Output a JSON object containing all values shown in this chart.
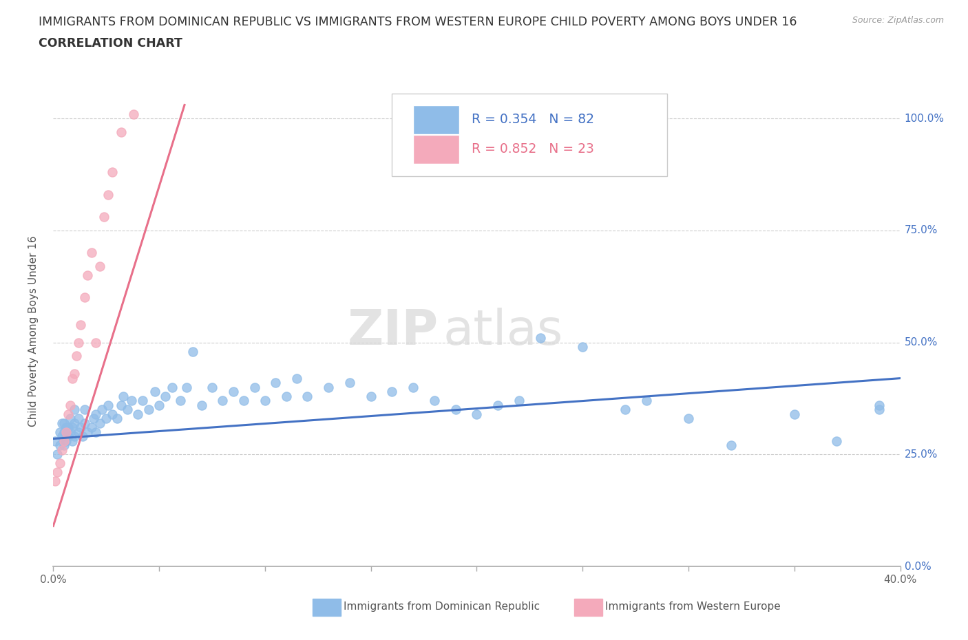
{
  "title_line1": "IMMIGRANTS FROM DOMINICAN REPUBLIC VS IMMIGRANTS FROM WESTERN EUROPE CHILD POVERTY AMONG BOYS UNDER 16",
  "title_line2": "CORRELATION CHART",
  "source": "Source: ZipAtlas.com",
  "ylabel": "Child Poverty Among Boys Under 16",
  "xlim": [
    0.0,
    0.4
  ],
  "ylim": [
    0.0,
    1.05
  ],
  "xticks": [
    0.0,
    0.05,
    0.1,
    0.15,
    0.2,
    0.25,
    0.3,
    0.35,
    0.4
  ],
  "yticks": [
    0.0,
    0.25,
    0.5,
    0.75,
    1.0
  ],
  "xtick_labels": [
    "0.0%",
    "",
    "",
    "",
    "",
    "",
    "",
    "",
    "40.0%"
  ],
  "blue_color": "#8FBCE8",
  "pink_color": "#F4AABB",
  "blue_line_color": "#4472C4",
  "pink_line_color": "#E8708A",
  "legend_R1": "R = 0.354",
  "legend_N1": "N = 82",
  "legend_R2": "R = 0.852",
  "legend_N2": "N = 23",
  "watermark_zip": "ZIP",
  "watermark_atlas": "atlas",
  "blue_scatter_x": [
    0.001,
    0.002,
    0.003,
    0.003,
    0.004,
    0.004,
    0.005,
    0.005,
    0.005,
    0.006,
    0.006,
    0.007,
    0.007,
    0.008,
    0.008,
    0.009,
    0.009,
    0.01,
    0.01,
    0.01,
    0.012,
    0.012,
    0.013,
    0.014,
    0.015,
    0.015,
    0.016,
    0.018,
    0.019,
    0.02,
    0.02,
    0.022,
    0.023,
    0.025,
    0.026,
    0.028,
    0.03,
    0.032,
    0.033,
    0.035,
    0.037,
    0.04,
    0.042,
    0.045,
    0.048,
    0.05,
    0.053,
    0.056,
    0.06,
    0.063,
    0.066,
    0.07,
    0.075,
    0.08,
    0.085,
    0.09,
    0.095,
    0.1,
    0.105,
    0.11,
    0.115,
    0.12,
    0.13,
    0.14,
    0.15,
    0.16,
    0.17,
    0.18,
    0.19,
    0.2,
    0.21,
    0.22,
    0.23,
    0.25,
    0.27,
    0.28,
    0.3,
    0.32,
    0.35,
    0.37,
    0.39,
    0.39
  ],
  "blue_scatter_y": [
    0.28,
    0.25,
    0.27,
    0.3,
    0.29,
    0.32,
    0.27,
    0.3,
    0.32,
    0.28,
    0.31,
    0.29,
    0.31,
    0.3,
    0.33,
    0.28,
    0.31,
    0.29,
    0.32,
    0.35,
    0.3,
    0.33,
    0.31,
    0.29,
    0.32,
    0.35,
    0.3,
    0.31,
    0.33,
    0.3,
    0.34,
    0.32,
    0.35,
    0.33,
    0.36,
    0.34,
    0.33,
    0.36,
    0.38,
    0.35,
    0.37,
    0.34,
    0.37,
    0.35,
    0.39,
    0.36,
    0.38,
    0.4,
    0.37,
    0.4,
    0.48,
    0.36,
    0.4,
    0.37,
    0.39,
    0.37,
    0.4,
    0.37,
    0.41,
    0.38,
    0.42,
    0.38,
    0.4,
    0.41,
    0.38,
    0.39,
    0.4,
    0.37,
    0.35,
    0.34,
    0.36,
    0.37,
    0.51,
    0.49,
    0.35,
    0.37,
    0.33,
    0.27,
    0.34,
    0.28,
    0.35,
    0.36
  ],
  "pink_scatter_x": [
    0.001,
    0.002,
    0.003,
    0.004,
    0.005,
    0.006,
    0.007,
    0.008,
    0.009,
    0.01,
    0.011,
    0.012,
    0.013,
    0.015,
    0.016,
    0.018,
    0.02,
    0.022,
    0.024,
    0.026,
    0.028,
    0.032,
    0.038
  ],
  "pink_scatter_y": [
    0.19,
    0.21,
    0.23,
    0.26,
    0.28,
    0.3,
    0.34,
    0.36,
    0.42,
    0.43,
    0.47,
    0.5,
    0.54,
    0.6,
    0.65,
    0.7,
    0.5,
    0.67,
    0.78,
    0.83,
    0.88,
    0.97,
    1.01
  ],
  "blue_trend_x": [
    0.0,
    0.4
  ],
  "blue_trend_y": [
    0.285,
    0.42
  ],
  "pink_trend_x": [
    0.0,
    0.062
  ],
  "pink_trend_y": [
    0.09,
    1.03
  ],
  "bg_color": "#FFFFFF",
  "grid_color": "#CCCCCC",
  "title_color": "#333333",
  "axis_label_color": "#555555",
  "right_axis_color": "#4472C4",
  "bottom_legend_blue": "Immigrants from Dominican Republic",
  "bottom_legend_pink": "Immigrants from Western Europe"
}
